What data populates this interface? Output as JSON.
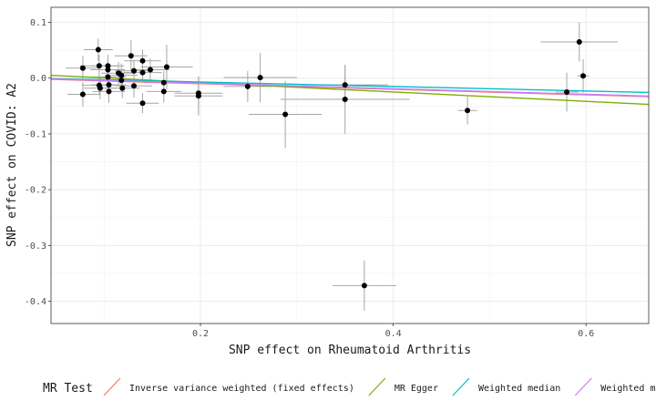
{
  "chart_data": {
    "type": "scatter",
    "xlabel": "SNP effect on Rheumatoid Arthritis",
    "ylabel": "SNP effect on COVID: A2",
    "xlim": [
      0.045,
      0.665
    ],
    "ylim": [
      -0.44,
      0.127
    ],
    "x_ticks": [
      0.2,
      0.4,
      0.6
    ],
    "x_tick_labels": [
      "0.2",
      "0.4",
      "0.6"
    ],
    "y_ticks": [
      0.1,
      0.0,
      -0.1,
      -0.2,
      -0.3,
      -0.4
    ],
    "y_tick_labels": [
      "0.1",
      "0.0",
      "-0.1",
      "-0.2",
      "-0.3",
      "-0.4"
    ],
    "grid": true,
    "legend": {
      "title": "MR Test",
      "position": "bottom",
      "entries": [
        {
          "label": "Inverse variance weighted (fixed effects)",
          "color": "#F8766D"
        },
        {
          "label": "MR Egger",
          "color": "#7CAE00"
        },
        {
          "label": "Weighted median",
          "color": "#00BFC4"
        },
        {
          "label": "Weighted mode",
          "color": "#C77CFF"
        }
      ]
    },
    "points": [
      {
        "x": 0.078,
        "y": 0.018,
        "xerr": 0.018,
        "yerr": 0.022
      },
      {
        "x": 0.078,
        "y": -0.029,
        "xerr": 0.016,
        "yerr": 0.022
      },
      {
        "x": 0.094,
        "y": 0.051,
        "xerr": 0.015,
        "yerr": 0.02
      },
      {
        "x": 0.095,
        "y": 0.022,
        "xerr": 0.02,
        "yerr": 0.02
      },
      {
        "x": 0.095,
        "y": -0.013,
        "xerr": 0.018,
        "yerr": 0.018
      },
      {
        "x": 0.096,
        "y": -0.018,
        "xerr": 0.017,
        "yerr": 0.02
      },
      {
        "x": 0.104,
        "y": 0.022,
        "xerr": 0.017,
        "yerr": 0.02
      },
      {
        "x": 0.104,
        "y": 0.015,
        "xerr": 0.018,
        "yerr": 0.019
      },
      {
        "x": 0.104,
        "y": 0.002,
        "xerr": 0.019,
        "yerr": 0.02
      },
      {
        "x": 0.105,
        "y": -0.012,
        "xerr": 0.018,
        "yerr": 0.019
      },
      {
        "x": 0.105,
        "y": -0.024,
        "xerr": 0.017,
        "yerr": 0.02
      },
      {
        "x": 0.115,
        "y": 0.009,
        "xerr": 0.018,
        "yerr": 0.02
      },
      {
        "x": 0.118,
        "y": 0.005,
        "xerr": 0.017,
        "yerr": 0.021
      },
      {
        "x": 0.118,
        "y": -0.004,
        "xerr": 0.018,
        "yerr": 0.02
      },
      {
        "x": 0.119,
        "y": -0.018,
        "xerr": 0.018,
        "yerr": 0.018
      },
      {
        "x": 0.128,
        "y": 0.04,
        "xerr": 0.017,
        "yerr": 0.028
      },
      {
        "x": 0.131,
        "y": 0.013,
        "xerr": 0.02,
        "yerr": 0.02
      },
      {
        "x": 0.131,
        "y": -0.014,
        "xerr": 0.019,
        "yerr": 0.021
      },
      {
        "x": 0.14,
        "y": 0.031,
        "xerr": 0.019,
        "yerr": 0.02
      },
      {
        "x": 0.14,
        "y": 0.01,
        "xerr": 0.02,
        "yerr": 0.019
      },
      {
        "x": 0.14,
        "y": -0.045,
        "xerr": 0.017,
        "yerr": 0.018
      },
      {
        "x": 0.148,
        "y": 0.015,
        "xerr": 0.02,
        "yerr": 0.02
      },
      {
        "x": 0.162,
        "y": -0.008,
        "xerr": 0.02,
        "yerr": 0.021
      },
      {
        "x": 0.162,
        "y": -0.024,
        "xerr": 0.018,
        "yerr": 0.02
      },
      {
        "x": 0.165,
        "y": 0.02,
        "xerr": 0.027,
        "yerr": 0.04
      },
      {
        "x": 0.198,
        "y": -0.027,
        "xerr": 0.025,
        "yerr": 0.03
      },
      {
        "x": 0.198,
        "y": -0.032,
        "xerr": 0.025,
        "yerr": 0.035
      },
      {
        "x": 0.249,
        "y": -0.015,
        "xerr": 0.025,
        "yerr": 0.028
      },
      {
        "x": 0.262,
        "y": 0.001,
        "xerr": 0.038,
        "yerr": 0.044
      },
      {
        "x": 0.288,
        "y": -0.065,
        "xerr": 0.038,
        "yerr": 0.06
      },
      {
        "x": 0.35,
        "y": -0.012,
        "xerr": 0.045,
        "yerr": 0.035
      },
      {
        "x": 0.35,
        "y": -0.038,
        "xerr": 0.067,
        "yerr": 0.062
      },
      {
        "x": 0.37,
        "y": -0.372,
        "xerr": 0.033,
        "yerr": 0.045
      },
      {
        "x": 0.477,
        "y": -0.058,
        "xerr": 0.01,
        "yerr": 0.025
      },
      {
        "x": 0.58,
        "y": -0.025,
        "xerr": 0.012,
        "yerr": 0.035
      },
      {
        "x": 0.593,
        "y": 0.065,
        "xerr": 0.04,
        "yerr": 0.035
      },
      {
        "x": 0.597,
        "y": 0.004,
        "xerr": 0.006,
        "yerr": 0.03
      }
    ],
    "lines": [
      {
        "name": "Inverse variance weighted (fixed effects)",
        "color": "#F8766D",
        "intercept": 0.0,
        "slope": -0.05
      },
      {
        "name": "MR Egger",
        "color": "#7CAE00",
        "intercept": 0.0087,
        "slope": -0.0839
      },
      {
        "name": "Weighted median",
        "color": "#00BFC4",
        "intercept": 0.001,
        "slope": -0.0401
      },
      {
        "name": "Weighted mode",
        "color": "#C77CFF",
        "intercept": 0.0009,
        "slope": -0.0499
      }
    ]
  }
}
